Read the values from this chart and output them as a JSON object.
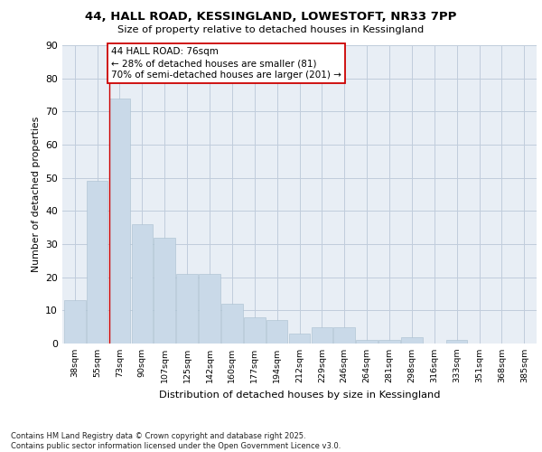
{
  "title_line1": "44, HALL ROAD, KESSINGLAND, LOWESTOFT, NR33 7PP",
  "title_line2": "Size of property relative to detached houses in Kessingland",
  "xlabel": "Distribution of detached houses by size in Kessingland",
  "ylabel": "Number of detached properties",
  "categories": [
    "38sqm",
    "55sqm",
    "73sqm",
    "90sqm",
    "107sqm",
    "125sqm",
    "142sqm",
    "160sqm",
    "177sqm",
    "194sqm",
    "212sqm",
    "229sqm",
    "246sqm",
    "264sqm",
    "281sqm",
    "298sqm",
    "316sqm",
    "333sqm",
    "351sqm",
    "368sqm",
    "385sqm"
  ],
  "values": [
    13,
    49,
    74,
    36,
    32,
    21,
    21,
    12,
    8,
    7,
    3,
    5,
    5,
    1,
    1,
    2,
    0,
    1,
    0,
    0,
    0
  ],
  "bar_color": "#c9d9e8",
  "bar_edge_color": "#a8bfcf",
  "grid_color": "#c0ccdc",
  "bg_color": "#e8eef5",
  "vline_color": "#cc0000",
  "annotation_text": "44 HALL ROAD: 76sqm\n← 28% of detached houses are smaller (81)\n70% of semi-detached houses are larger (201) →",
  "annotation_box_color": "#cc0000",
  "footnote": "Contains HM Land Registry data © Crown copyright and database right 2025.\nContains public sector information licensed under the Open Government Licence v3.0.",
  "ylim": [
    0,
    90
  ],
  "yticks": [
    0,
    10,
    20,
    30,
    40,
    50,
    60,
    70,
    80,
    90
  ]
}
